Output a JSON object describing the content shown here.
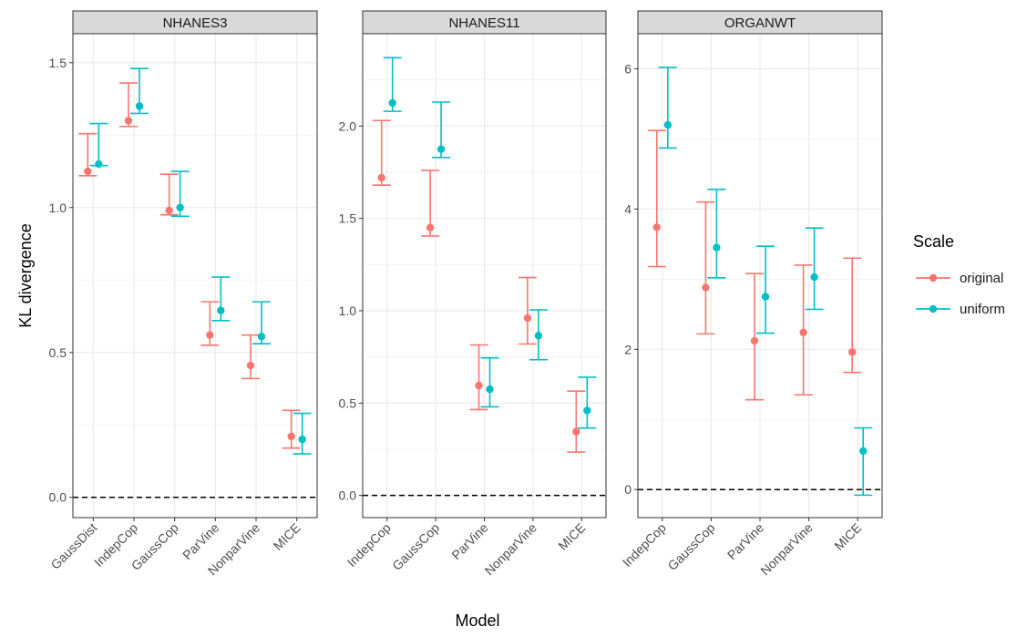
{
  "chart_data": {
    "type": "scatter",
    "subtype": "point-with-errorbars, faceted",
    "xlabel": "Model",
    "ylabel": "KL divergence",
    "legend": {
      "title": "Scale",
      "placement": "right",
      "entries": [
        {
          "name": "original",
          "color": "#F8766D"
        },
        {
          "name": "uniform",
          "color": "#00BFC4"
        }
      ]
    },
    "reference_line": {
      "y": 0,
      "style": "dashed"
    },
    "grid": true,
    "facets": [
      {
        "title": "NHANES3",
        "categories": [
          "GaussDist",
          "IndepCop",
          "GaussCop",
          "ParVine",
          "NonparVine",
          "MICE"
        ],
        "ylim": [
          -0.07,
          1.6
        ],
        "yticks": [
          0.0,
          0.5,
          1.0,
          1.5
        ],
        "ytick_labels": [
          "0.0",
          "0.5",
          "1.0",
          "1.5"
        ],
        "series": [
          {
            "name": "original",
            "values": [
              1.125,
              1.3,
              0.99,
              0.56,
              0.455,
              0.21
            ],
            "lower": [
              1.11,
              1.28,
              0.975,
              0.525,
              0.41,
              0.17
            ],
            "upper": [
              1.255,
              1.43,
              1.115,
              0.675,
              0.56,
              0.3
            ]
          },
          {
            "name": "uniform",
            "values": [
              1.15,
              1.35,
              1.0,
              0.645,
              0.555,
              0.2
            ],
            "lower": [
              1.145,
              1.325,
              0.97,
              0.61,
              0.53,
              0.15
            ],
            "upper": [
              1.29,
              1.48,
              1.125,
              0.76,
              0.675,
              0.29
            ]
          }
        ]
      },
      {
        "title": "NHANES11",
        "categories": [
          "IndepCop",
          "GaussCop",
          "ParVine",
          "NonparVine",
          "MICE"
        ],
        "ylim": [
          -0.12,
          2.5
        ],
        "yticks": [
          0.0,
          0.5,
          1.0,
          1.5,
          2.0
        ],
        "ytick_labels": [
          "0.0",
          "0.5",
          "1.0",
          "1.5",
          "2.0"
        ],
        "series": [
          {
            "name": "original",
            "values": [
              1.72,
              1.45,
              0.595,
              0.96,
              0.345
            ],
            "lower": [
              1.68,
              1.405,
              0.465,
              0.82,
              0.235
            ],
            "upper": [
              2.03,
              1.76,
              0.815,
              1.18,
              0.565
            ]
          },
          {
            "name": "uniform",
            "values": [
              2.125,
              1.875,
              0.575,
              0.865,
              0.46
            ],
            "lower": [
              2.08,
              1.83,
              0.48,
              0.735,
              0.365
            ],
            "upper": [
              2.37,
              2.13,
              0.745,
              1.005,
              0.64
            ]
          }
        ]
      },
      {
        "title": "ORGANWT",
        "categories": [
          "IndepCop",
          "GaussCop",
          "ParVine",
          "NonparVine",
          "MICE"
        ],
        "ylim": [
          -0.4,
          6.5
        ],
        "yticks": [
          0,
          2,
          4,
          6
        ],
        "ytick_labels": [
          "0",
          "2",
          "4",
          "6"
        ],
        "series": [
          {
            "name": "original",
            "values": [
              3.74,
              2.88,
              2.12,
              2.24,
              1.96
            ],
            "lower": [
              3.18,
              2.22,
              1.28,
              1.35,
              1.67
            ],
            "upper": [
              5.12,
              4.1,
              3.08,
              3.2,
              3.3
            ]
          },
          {
            "name": "uniform",
            "values": [
              5.2,
              3.45,
              2.75,
              3.03,
              0.55
            ],
            "lower": [
              4.87,
              3.02,
              2.23,
              2.57,
              -0.08
            ],
            "upper": [
              6.02,
              4.28,
              3.47,
              3.73,
              0.88
            ]
          }
        ]
      }
    ]
  }
}
